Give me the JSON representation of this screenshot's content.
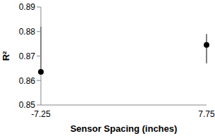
{
  "chart_data": {
    "type": "scatter",
    "x_label": "Sensor Spacing (inches)",
    "y_label": "R²",
    "categories": [
      "-7.25",
      "7.75"
    ],
    "values": [
      0.8635,
      0.8745
    ],
    "errors": [
      [
        0,
        0.0185
      ],
      [
        0.0075,
        0.0045
      ]
    ],
    "color": "#000000",
    "marker": "circle",
    "ylim": [
      0.85,
      0.89
    ],
    "yticks": [
      0.85,
      0.86,
      0.87,
      0.88,
      0.89
    ],
    "grid": false
  }
}
